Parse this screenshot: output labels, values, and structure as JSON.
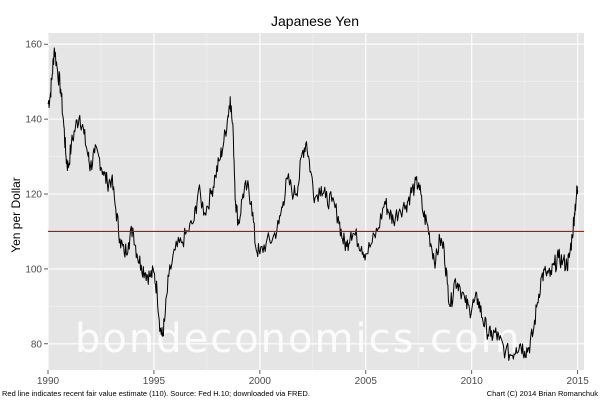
{
  "chart_data": {
    "type": "line",
    "title": "Japanese Yen",
    "xlabel": "",
    "ylabel": "Yen per Dollar",
    "xlim": [
      1990,
      2015.3
    ],
    "ylim": [
      73,
      163
    ],
    "x_ticks": [
      1990,
      1995,
      2000,
      2005,
      2010,
      2015
    ],
    "y_ticks": [
      80,
      100,
      120,
      140,
      160
    ],
    "grid": true,
    "reference_line": {
      "y": 110,
      "color": "#dd0000"
    },
    "series": [
      {
        "name": "Yen per Dollar",
        "color": "#000000",
        "points": [
          [
            1990.0,
            144
          ],
          [
            1990.1,
            146
          ],
          [
            1990.2,
            152
          ],
          [
            1990.3,
            159
          ],
          [
            1990.45,
            153
          ],
          [
            1990.6,
            148
          ],
          [
            1990.75,
            138
          ],
          [
            1990.85,
            130
          ],
          [
            1990.95,
            127
          ],
          [
            1991.1,
            133
          ],
          [
            1991.3,
            138
          ],
          [
            1991.5,
            141
          ],
          [
            1991.7,
            136
          ],
          [
            1991.9,
            130
          ],
          [
            1992.0,
            127
          ],
          [
            1992.2,
            131
          ],
          [
            1992.4,
            130
          ],
          [
            1992.6,
            126
          ],
          [
            1992.8,
            123
          ],
          [
            1993.0,
            124
          ],
          [
            1993.2,
            116
          ],
          [
            1993.4,
            108
          ],
          [
            1993.6,
            104
          ],
          [
            1993.8,
            107
          ],
          [
            1994.0,
            111
          ],
          [
            1994.2,
            104
          ],
          [
            1994.4,
            101
          ],
          [
            1994.6,
            99
          ],
          [
            1994.8,
            98
          ],
          [
            1995.0,
            99
          ],
          [
            1995.15,
            94
          ],
          [
            1995.3,
            84
          ],
          [
            1995.4,
            82
          ],
          [
            1995.5,
            86
          ],
          [
            1995.7,
            98
          ],
          [
            1996.0,
            105
          ],
          [
            1996.3,
            107
          ],
          [
            1996.6,
            110
          ],
          [
            1996.9,
            113
          ],
          [
            1997.1,
            121
          ],
          [
            1997.4,
            115
          ],
          [
            1997.7,
            120
          ],
          [
            1997.9,
            125
          ],
          [
            1998.1,
            129
          ],
          [
            1998.3,
            134
          ],
          [
            1998.5,
            141
          ],
          [
            1998.6,
            146
          ],
          [
            1998.75,
            135
          ],
          [
            1998.85,
            118
          ],
          [
            1999.0,
            112
          ],
          [
            1999.2,
            120
          ],
          [
            1999.4,
            122
          ],
          [
            1999.6,
            118
          ],
          [
            1999.8,
            106
          ],
          [
            2000.0,
            104
          ],
          [
            2000.3,
            107
          ],
          [
            2000.6,
            108
          ],
          [
            2000.9,
            112
          ],
          [
            2001.1,
            118
          ],
          [
            2001.3,
            124
          ],
          [
            2001.6,
            120
          ],
          [
            2001.8,
            122
          ],
          [
            2002.0,
            131
          ],
          [
            2002.2,
            134
          ],
          [
            2002.4,
            126
          ],
          [
            2002.6,
            119
          ],
          [
            2002.9,
            122
          ],
          [
            2003.1,
            119
          ],
          [
            2003.4,
            118
          ],
          [
            2003.7,
            114
          ],
          [
            2003.9,
            108
          ],
          [
            2004.1,
            106
          ],
          [
            2004.3,
            110
          ],
          [
            2004.5,
            109
          ],
          [
            2004.8,
            106
          ],
          [
            2005.0,
            104
          ],
          [
            2005.3,
            107
          ],
          [
            2005.6,
            111
          ],
          [
            2005.9,
            118
          ],
          [
            2006.1,
            115
          ],
          [
            2006.3,
            113
          ],
          [
            2006.6,
            116
          ],
          [
            2006.9,
            117
          ],
          [
            2007.1,
            120
          ],
          [
            2007.3,
            122
          ],
          [
            2007.5,
            123
          ],
          [
            2007.7,
            115
          ],
          [
            2007.9,
            112
          ],
          [
            2008.1,
            106
          ],
          [
            2008.3,
            102
          ],
          [
            2008.5,
            108
          ],
          [
            2008.7,
            105
          ],
          [
            2008.85,
            96
          ],
          [
            2009.0,
            90
          ],
          [
            2009.2,
            97
          ],
          [
            2009.4,
            96
          ],
          [
            2009.7,
            91
          ],
          [
            2009.9,
            89
          ],
          [
            2010.1,
            91
          ],
          [
            2010.3,
            92
          ],
          [
            2010.5,
            87
          ],
          [
            2010.7,
            84
          ],
          [
            2010.9,
            82
          ],
          [
            2011.1,
            83
          ],
          [
            2011.3,
            81
          ],
          [
            2011.6,
            78
          ],
          [
            2011.9,
            77
          ],
          [
            2012.1,
            79
          ],
          [
            2012.3,
            80
          ],
          [
            2012.5,
            78
          ],
          [
            2012.7,
            79
          ],
          [
            2012.9,
            83
          ],
          [
            2013.1,
            91
          ],
          [
            2013.3,
            98
          ],
          [
            2013.5,
            99
          ],
          [
            2013.7,
            98
          ],
          [
            2013.9,
            101
          ],
          [
            2014.1,
            103
          ],
          [
            2014.3,
            102
          ],
          [
            2014.5,
            101
          ],
          [
            2014.6,
            103
          ],
          [
            2014.75,
            109
          ],
          [
            2014.85,
            115
          ],
          [
            2014.95,
            120
          ],
          [
            2015.0,
            121
          ]
        ]
      }
    ],
    "watermark": "bondeconomics.com",
    "footnote_left": "Red line indicates recent fair value estimate (110). Source: Fed H.10; downloaded via FRED.",
    "footnote_right": "Chart (C) 2014 Brian Romanchuk"
  }
}
